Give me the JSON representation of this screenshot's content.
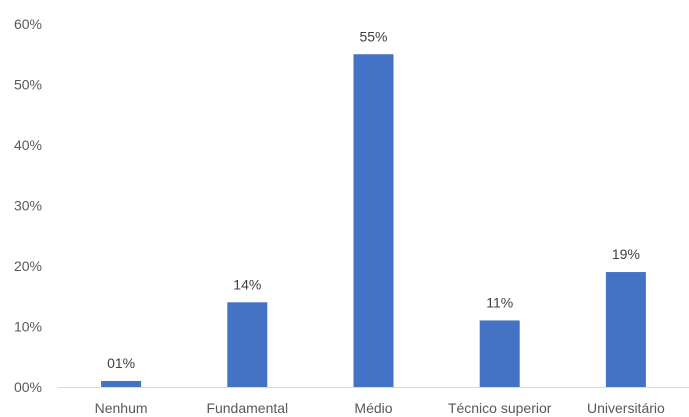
{
  "chart_data": {
    "type": "bar",
    "categories": [
      "Nenhum",
      "Fundamental",
      "Médio",
      "Técnico superior",
      "Universitário"
    ],
    "values": [
      1,
      14,
      55,
      11,
      19
    ],
    "data_labels": [
      "01%",
      "14%",
      "55%",
      "11%",
      "19%"
    ],
    "ylim": [
      0,
      60
    ],
    "yticks": [
      0,
      10,
      20,
      30,
      40,
      50,
      60
    ],
    "ytick_labels": [
      "00%",
      "10%",
      "20%",
      "30%",
      "40%",
      "50%",
      "60%"
    ],
    "title": "",
    "xlabel": "",
    "ylabel": "",
    "grid": false,
    "legend": "none",
    "bar_color": "#4472C4",
    "axis_color": "#d9d9d9"
  }
}
